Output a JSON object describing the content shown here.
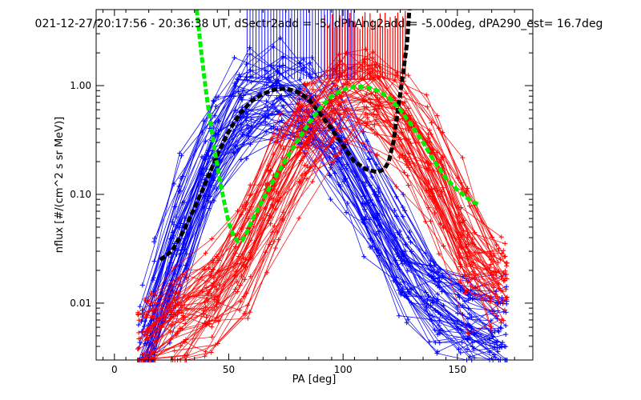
{
  "chart_data": {
    "type": "line",
    "title": "021-12-27/20:17:56 - 20:36:38 UT, dSectr2add = -5, dPhAng2add = -5.00deg, dPA290_est=  16.7deg",
    "xlabel": "PA [deg]",
    "ylabel": "nflux [#/(cm^2 s sr MeV)]",
    "xlim": [
      -8,
      183
    ],
    "ylim": [
      0.003,
      5
    ],
    "yscale": "log",
    "xticks": [
      {
        "v": 0,
        "label": "0"
      },
      {
        "v": 50,
        "label": "50"
      },
      {
        "v": 100,
        "label": "100"
      },
      {
        "v": 150,
        "label": "150"
      }
    ],
    "yticks": [
      {
        "v": 0.01,
        "label": "0.01"
      },
      {
        "v": 0.1,
        "label": "0.10"
      },
      {
        "v": 1.0,
        "label": "1.00"
      }
    ],
    "grid": false,
    "colors": {
      "blue_traces": "#0000ff",
      "red_traces": "#ff0000",
      "fit_black": "#000000",
      "fit_green": "#00ee00"
    },
    "series": [
      {
        "color": "blue",
        "style": "line-markers",
        "profile": {
          "x": [
            15,
            20,
            30,
            40,
            50,
            60,
            70,
            78,
            90,
            100,
            110,
            120,
            130,
            140,
            150,
            160,
            170
          ],
          "y": [
            0.004,
            0.012,
            0.06,
            0.2,
            0.5,
            0.8,
            0.9,
            0.85,
            0.55,
            0.25,
            0.1,
            0.04,
            0.018,
            0.012,
            0.009,
            0.007,
            0.006
          ]
        }
      },
      {
        "color": "red",
        "style": "line-markers",
        "profile": {
          "x": [
            15,
            20,
            30,
            40,
            50,
            55,
            60,
            70,
            80,
            90,
            100,
            110,
            120,
            130,
            140,
            150,
            160
          ],
          "y": [
            0.004,
            0.005,
            0.007,
            0.01,
            0.015,
            0.02,
            0.04,
            0.1,
            0.25,
            0.5,
            0.8,
            0.85,
            0.6,
            0.35,
            0.15,
            0.05,
            0.015
          ]
        }
      },
      {
        "color": "black",
        "style": "thick-dashed",
        "x": [
          20,
          25,
          30,
          35,
          40,
          45,
          50,
          55,
          60,
          65,
          70,
          75,
          80,
          85,
          90,
          95,
          100,
          105,
          110,
          115,
          118,
          120,
          122,
          124,
          126,
          128,
          129
        ],
        "y": [
          0.025,
          0.03,
          0.045,
          0.075,
          0.13,
          0.23,
          0.38,
          0.56,
          0.72,
          0.84,
          0.92,
          0.94,
          0.88,
          0.75,
          0.55,
          0.4,
          0.28,
          0.2,
          0.17,
          0.16,
          0.17,
          0.2,
          0.3,
          0.6,
          1.2,
          2.5,
          5.0
        ]
      },
      {
        "color": "green",
        "style": "thick-dashed",
        "x": [
          36,
          38,
          40,
          42,
          44,
          46,
          48,
          50,
          52,
          54,
          56,
          58,
          60,
          65,
          70,
          75,
          80,
          85,
          90,
          95,
          100,
          105,
          110,
          115,
          120,
          125,
          130,
          135,
          140,
          145,
          150,
          155,
          158,
          160
        ],
        "y": [
          5.0,
          2.0,
          0.9,
          0.45,
          0.24,
          0.14,
          0.085,
          0.055,
          0.042,
          0.037,
          0.038,
          0.045,
          0.057,
          0.09,
          0.14,
          0.21,
          0.31,
          0.45,
          0.62,
          0.8,
          0.92,
          0.98,
          0.97,
          0.9,
          0.78,
          0.6,
          0.43,
          0.3,
          0.2,
          0.14,
          0.11,
          0.09,
          0.083,
          0.08
        ]
      }
    ]
  }
}
